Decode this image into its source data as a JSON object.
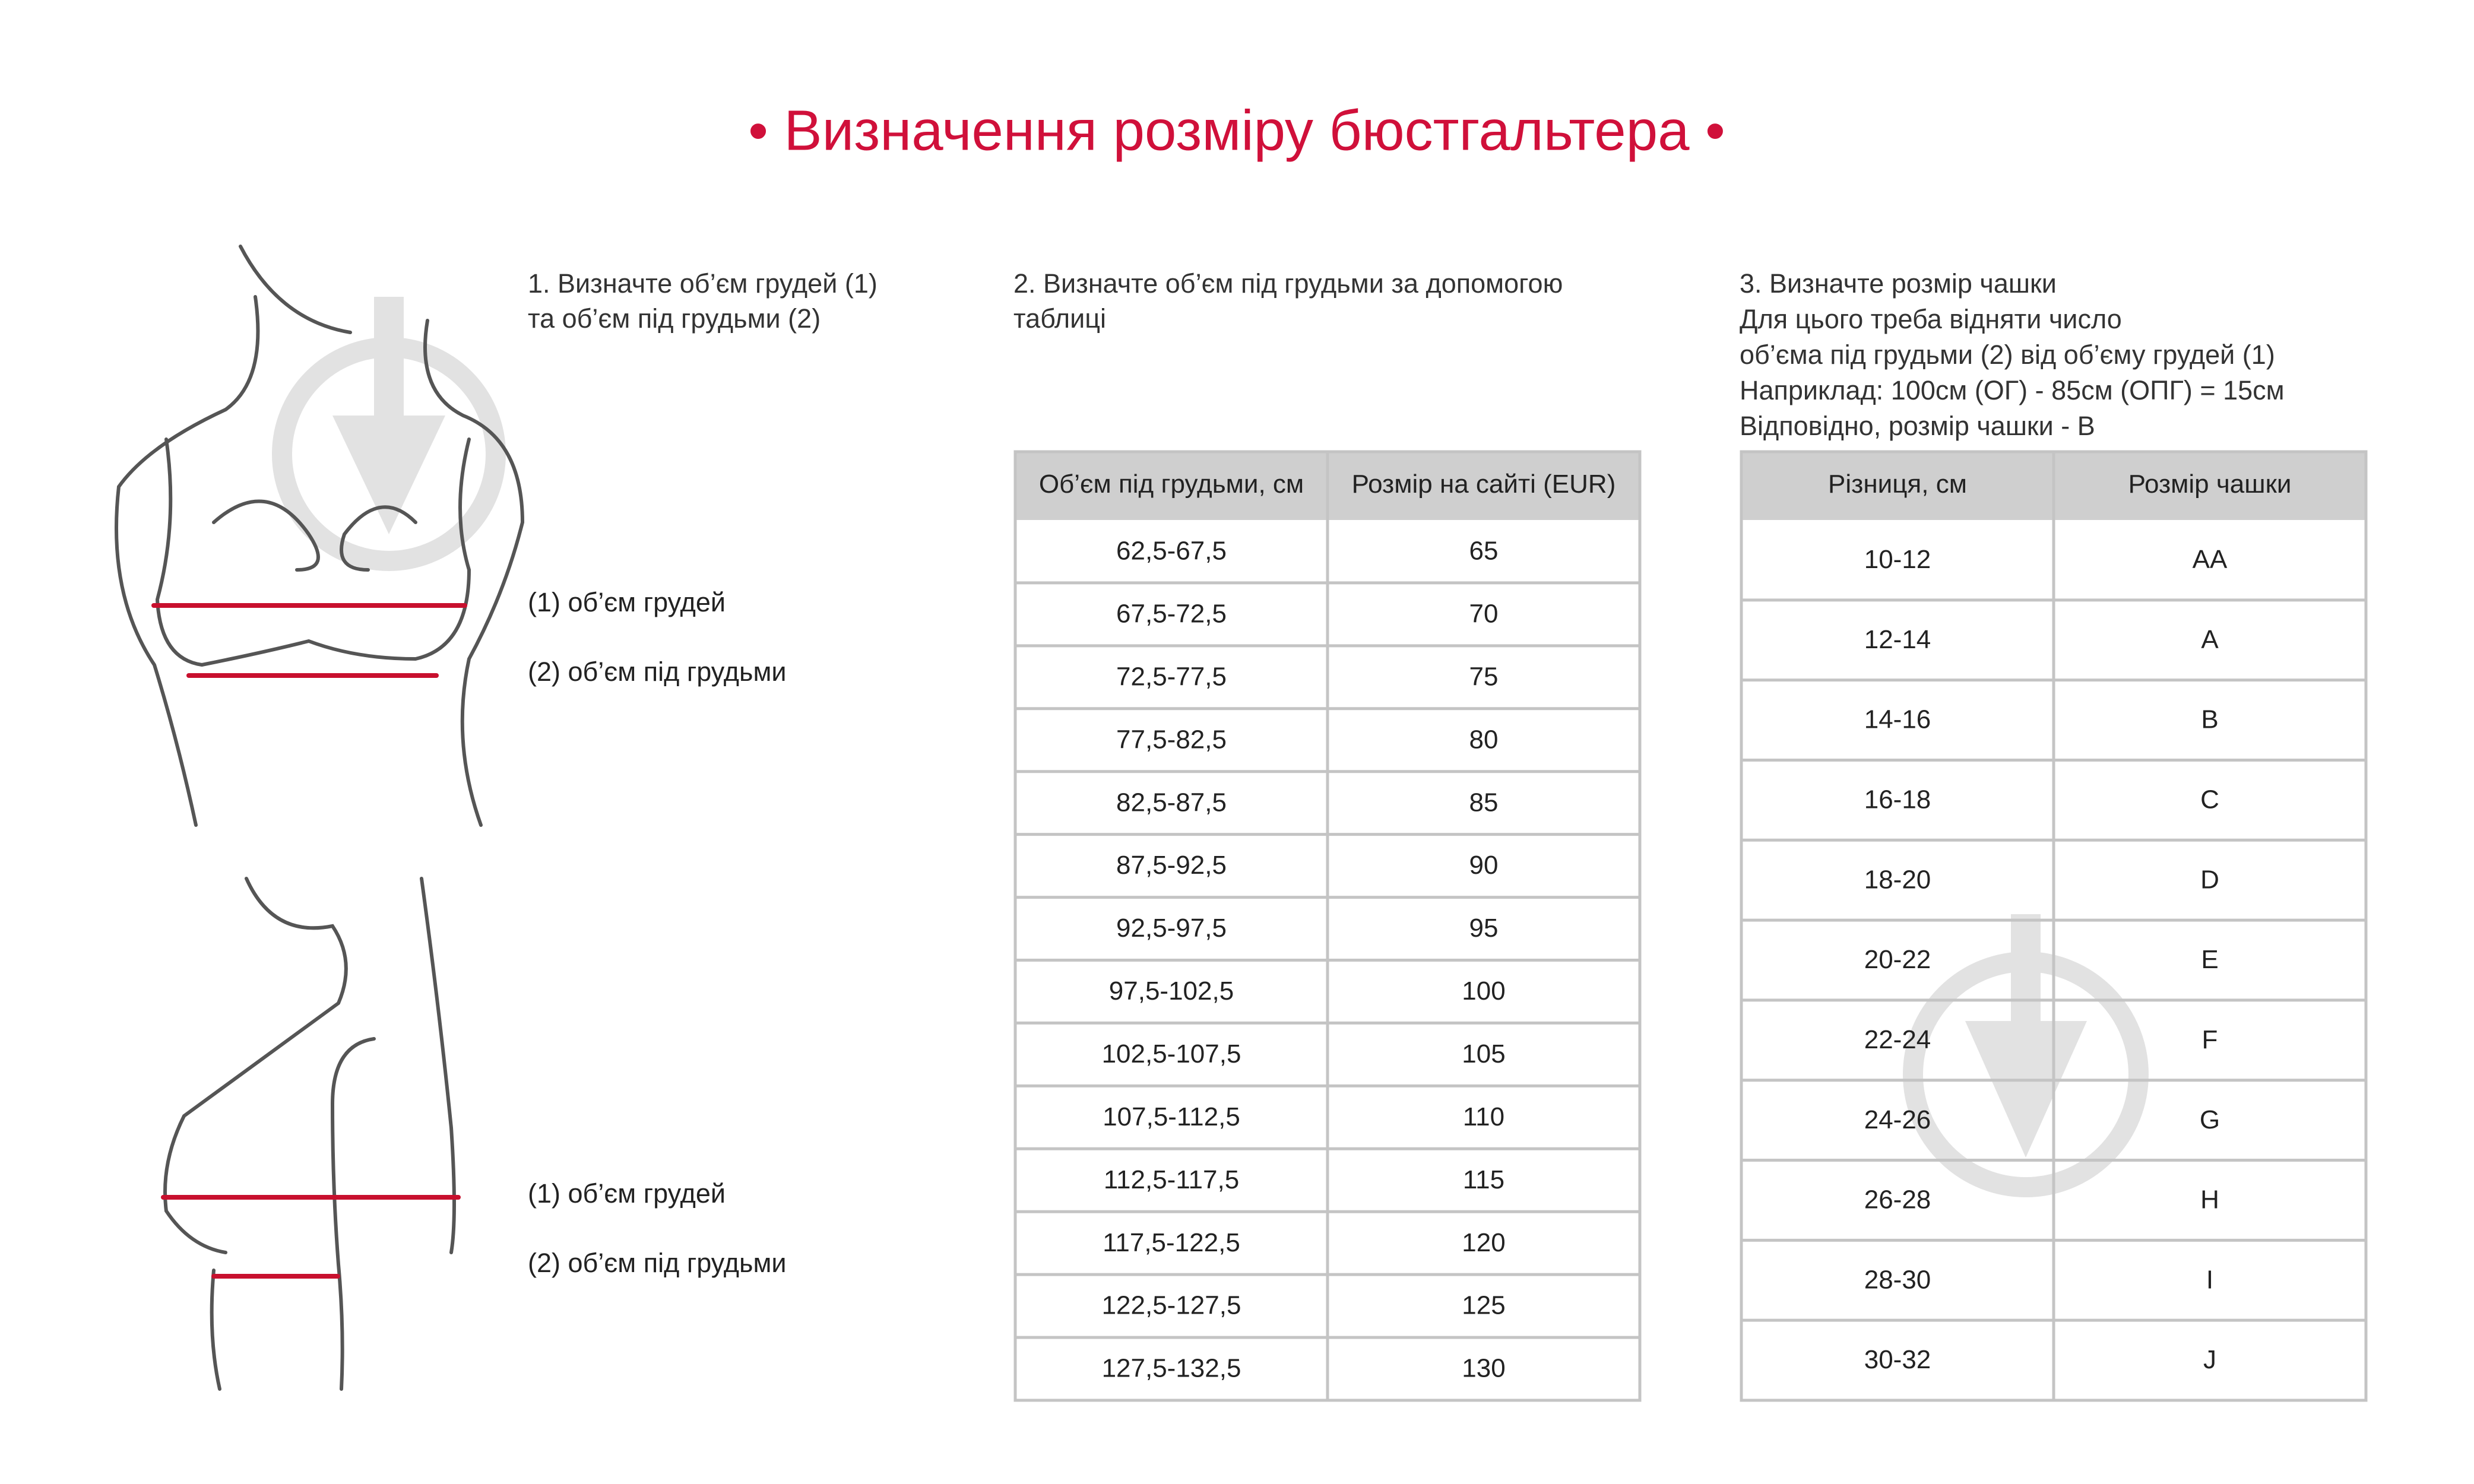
{
  "header": {
    "title": "• Визначення розміру бюстгальтера •"
  },
  "step1": {
    "lines": [
      "1. Визначте об’єм грудей  (1)",
      "та об’єм під грудьми (2)"
    ]
  },
  "figure_front": {
    "labels": [
      "(1) об’єм грудей",
      "(2) об’єм під грудьми"
    ]
  },
  "figure_side": {
    "labels": [
      "(1) об’єм грудей",
      "(2) об’єм під грудьми"
    ]
  },
  "step2": {
    "lines": [
      "2. Визначте об’єм під грудьми за допомогою",
      "таблиці"
    ]
  },
  "step3": {
    "lines": [
      "3. Визначте розмір чашки",
      "Для цього треба відняти число",
      "об’єма під грудьми (2) від об’єму грудей (1)",
      "Наприклад: 100см (ОГ) - 85см (ОПГ) = 15см",
      "Відповідно, розмір чашки - B"
    ]
  },
  "table1": {
    "header": [
      "Об’єм під грудьми, см",
      "Розмір на сайті (EUR)"
    ],
    "rows": [
      [
        "62,5-67,5",
        "65"
      ],
      [
        "67,5-72,5",
        "70"
      ],
      [
        "72,5-77,5",
        "75"
      ],
      [
        "77,5-82,5",
        "80"
      ],
      [
        "82,5-87,5",
        "85"
      ],
      [
        "87,5-92,5",
        "90"
      ],
      [
        "92,5-97,5",
        "95"
      ],
      [
        "97,5-102,5",
        "100"
      ],
      [
        "102,5-107,5",
        "105"
      ],
      [
        "107,5-112,5",
        "110"
      ],
      [
        "112,5-117,5",
        "115"
      ],
      [
        "117,5-122,5",
        "120"
      ],
      [
        "122,5-127,5",
        "125"
      ],
      [
        "127,5-132,5",
        "130"
      ]
    ]
  },
  "table2": {
    "header": [
      "Різниця, см",
      "Розмір чашки"
    ],
    "rows": [
      [
        "10-12",
        "AA"
      ],
      [
        "12-14",
        "A"
      ],
      [
        "14-16",
        "B"
      ],
      [
        "16-18",
        "C"
      ],
      [
        "18-20",
        "D"
      ],
      [
        "20-22",
        "E"
      ],
      [
        "22-24",
        "F"
      ],
      [
        "24-26",
        "G"
      ],
      [
        "26-28",
        "H"
      ],
      [
        "28-30",
        "I"
      ],
      [
        "30-32",
        "J"
      ]
    ]
  }
}
